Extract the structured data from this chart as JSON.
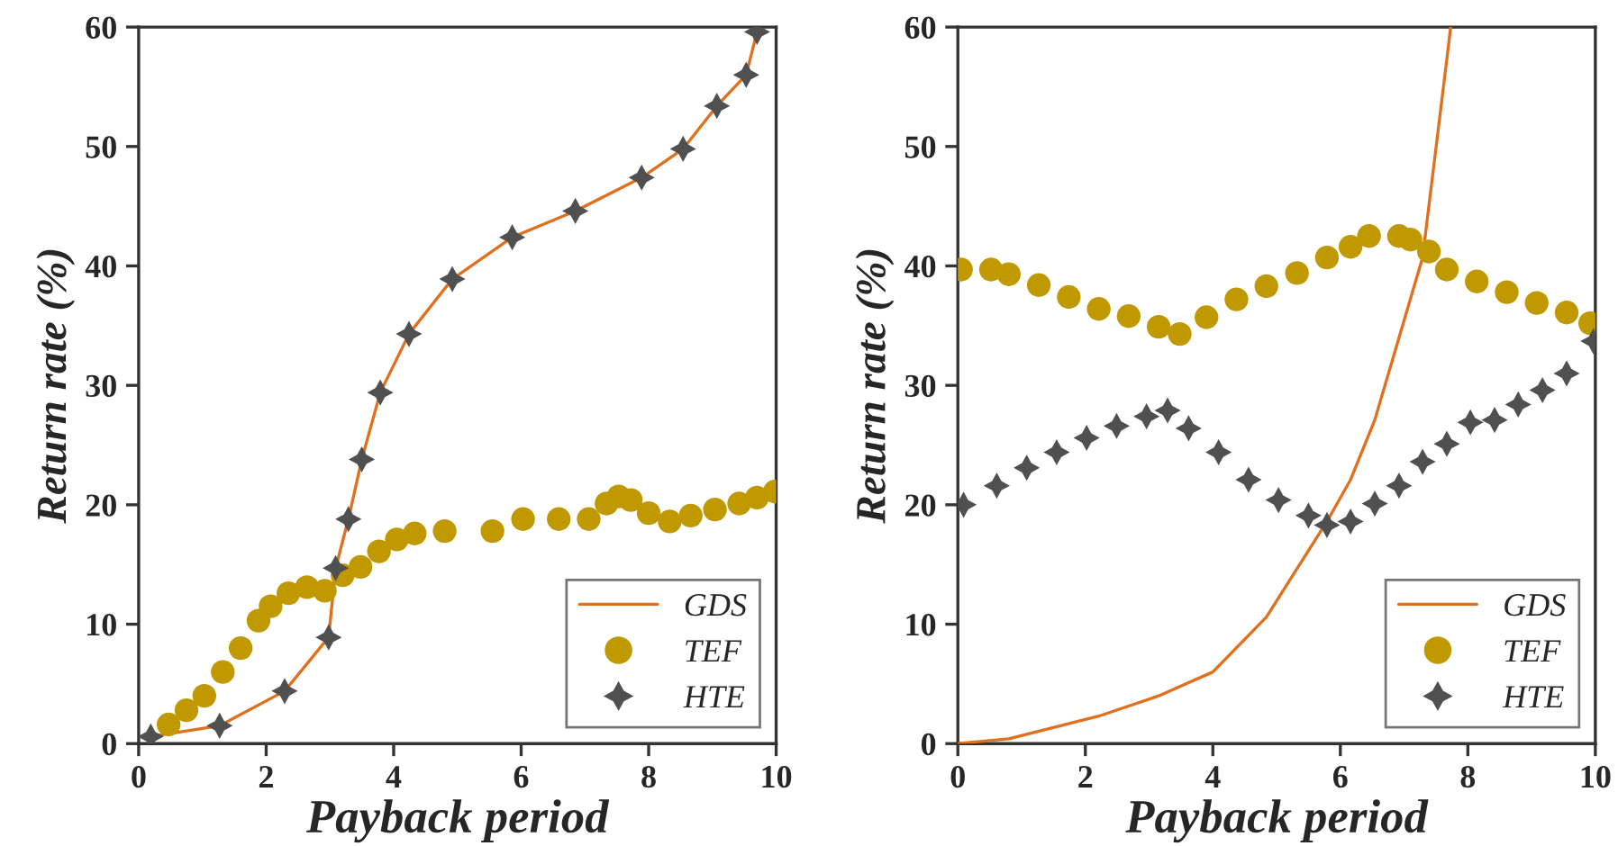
{
  "chart_data": [
    {
      "type": "line",
      "xlabel": "Payback period",
      "ylabel": "Return rate (%)",
      "xlim": [
        0,
        10
      ],
      "ylim": [
        0,
        60
      ],
      "xticks": [
        0,
        2,
        4,
        6,
        8,
        10
      ],
      "yticks": [
        0,
        10,
        20,
        30,
        40,
        50,
        60
      ],
      "legend": "bottom right",
      "grid": false,
      "series": [
        {
          "name": "GDS",
          "color": "#e0701e",
          "marker": "none",
          "x": [
            0.19,
            1.27,
            2.29,
            2.98,
            3.09,
            3.29,
            3.5,
            3.79,
            4.24,
            4.92,
            5.86,
            6.85,
            7.89,
            8.54,
            9.07,
            9.53,
            9.7
          ],
          "values": [
            0.6,
            1.5,
            4.4,
            8.9,
            14.7,
            18.8,
            23.8,
            29.4,
            34.3,
            38.9,
            42.4,
            44.6,
            47.4,
            49.8,
            53.4,
            56.0,
            59.6
          ]
        },
        {
          "name": "TEF",
          "type": "scatter",
          "color": "#c09800",
          "marker": "circle",
          "x": [
            0.47,
            0.75,
            1.03,
            1.32,
            1.6,
            1.88,
            2.07,
            2.35,
            2.64,
            2.92,
            3.2,
            3.48,
            3.77,
            4.05,
            4.33,
            4.8,
            5.55,
            6.03,
            6.59,
            7.06,
            7.34,
            7.53,
            7.72,
            8.0,
            8.33,
            8.66,
            9.04,
            9.42,
            9.7,
            9.98
          ],
          "values": [
            1.6,
            2.8,
            4.0,
            6.0,
            8.0,
            10.3,
            11.5,
            12.6,
            13.1,
            12.8,
            14.1,
            14.8,
            16.1,
            17.1,
            17.6,
            17.8,
            17.8,
            18.8,
            18.8,
            18.8,
            20.1,
            20.7,
            20.4,
            19.3,
            18.6,
            19.1,
            19.6,
            20.1,
            20.6,
            21.1
          ]
        },
        {
          "name": "HTE",
          "type": "scatter",
          "color": "#505050",
          "marker": "star",
          "x": [
            0.19,
            1.27,
            2.29,
            2.98,
            3.09,
            3.29,
            3.5,
            3.79,
            4.24,
            4.92,
            5.86,
            6.85,
            7.89,
            8.54,
            9.07,
            9.53,
            9.7
          ],
          "values": [
            0.6,
            1.5,
            4.4,
            8.9,
            14.7,
            18.8,
            23.8,
            29.4,
            34.3,
            38.9,
            42.4,
            44.6,
            47.4,
            49.8,
            53.4,
            56.0,
            59.6
          ]
        }
      ]
    },
    {
      "type": "line",
      "xlabel": "Payback period",
      "ylabel": "Return rate (%)",
      "xlim": [
        0,
        10
      ],
      "ylim": [
        0,
        60
      ],
      "xticks": [
        0,
        2,
        4,
        6,
        8,
        10
      ],
      "yticks": [
        0,
        10,
        20,
        30,
        40,
        50,
        60
      ],
      "legend": "bottom right",
      "grid": false,
      "series": [
        {
          "name": "GDS",
          "color": "#e0701e",
          "marker": "none",
          "x": [
            0,
            0.8,
            2.21,
            3.15,
            4.0,
            4.84,
            5.79,
            6.16,
            6.54,
            7.29,
            7.67,
            7.73
          ],
          "values": [
            0,
            0.4,
            2.3,
            4.0,
            6.0,
            10.6,
            18.6,
            22.1,
            27.1,
            40.7,
            57.3,
            60
          ]
        },
        {
          "name": "TEF",
          "type": "scatter",
          "color": "#c09800",
          "marker": "circle",
          "x": [
            0.05,
            0.52,
            0.8,
            1.27,
            1.74,
            2.21,
            2.68,
            3.15,
            3.48,
            3.9,
            4.37,
            4.84,
            5.32,
            5.79,
            6.16,
            6.45,
            6.92,
            7.1,
            7.39,
            7.67,
            8.14,
            8.61,
            9.08,
            9.55,
            9.92
          ],
          "values": [
            39.7,
            39.7,
            39.3,
            38.4,
            37.4,
            36.4,
            35.8,
            34.9,
            34.3,
            35.7,
            37.2,
            38.3,
            39.4,
            40.7,
            41.6,
            42.5,
            42.5,
            42.2,
            41.2,
            39.7,
            38.7,
            37.8,
            36.9,
            36.1,
            35.2
          ]
        },
        {
          "name": "HTE",
          "type": "scatter",
          "color": "#505050",
          "marker": "star",
          "x": [
            0.09,
            0.61,
            1.08,
            1.55,
            2.02,
            2.49,
            2.96,
            3.29,
            3.62,
            4.09,
            4.56,
            5.03,
            5.5,
            5.79,
            6.16,
            6.54,
            6.92,
            7.29,
            7.67,
            8.04,
            8.42,
            8.79,
            9.17,
            9.55,
            9.97
          ],
          "values": [
            20.0,
            21.6,
            23.1,
            24.4,
            25.6,
            26.6,
            27.4,
            27.9,
            26.4,
            24.4,
            22.1,
            20.4,
            19.1,
            18.3,
            18.6,
            20.1,
            21.6,
            23.6,
            25.1,
            26.9,
            27.1,
            28.4,
            29.6,
            31.0,
            33.7
          ]
        }
      ]
    }
  ]
}
